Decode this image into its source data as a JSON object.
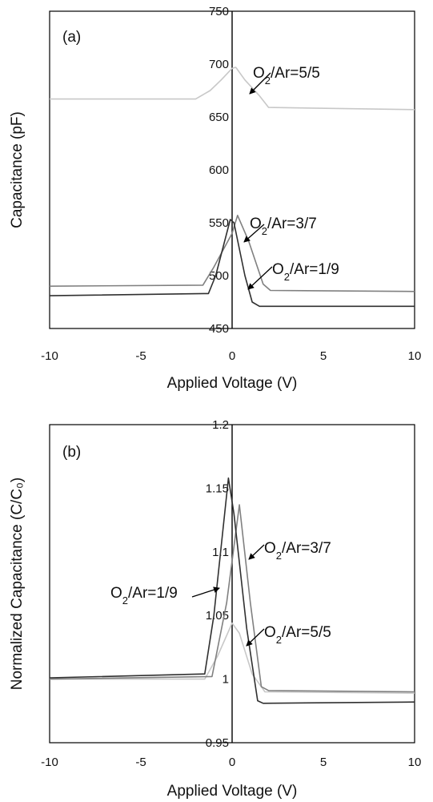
{
  "chart_data": [
    {
      "type": "line",
      "panel_label": "(a)",
      "xlabel": "Applied Voltage (V)",
      "ylabel": "Capacitance (pF)",
      "xlim": [
        -10,
        10
      ],
      "ylim": [
        450,
        750
      ],
      "x_ticks": [
        "-10",
        "-5",
        "0",
        "5",
        "10"
      ],
      "y_ticks": [
        "450",
        "500",
        "550",
        "600",
        "650",
        "700",
        "750"
      ],
      "grid": false,
      "series": [
        {
          "annotation": [
            "O",
            "2",
            "/Ar=5/5"
          ],
          "color": "#c8c8c8",
          "points": [
            [
              -10,
              667
            ],
            [
              -2,
              667
            ],
            [
              -1.2,
              675
            ],
            [
              -0.6,
              685
            ],
            [
              0,
              696
            ],
            [
              0.2,
              697
            ],
            [
              0.7,
              685
            ],
            [
              1.5,
              670
            ],
            [
              2,
              659
            ],
            [
              10,
              657
            ]
          ]
        },
        {
          "annotation": [
            "O",
            "2",
            "/Ar=3/7"
          ],
          "color": "#808080",
          "points": [
            [
              -10,
              490
            ],
            [
              -1.6,
              491
            ],
            [
              -1,
              508
            ],
            [
              0,
              540
            ],
            [
              0.3,
              557
            ],
            [
              0.9,
              533
            ],
            [
              1.7,
              492
            ],
            [
              2.1,
              486
            ],
            [
              10,
              485
            ]
          ]
        },
        {
          "annotation": [
            "O",
            "2",
            "/Ar=1/9"
          ],
          "color": "#303030",
          "points": [
            [
              -10,
              481
            ],
            [
              -1.3,
              483
            ],
            [
              -0.9,
              500
            ],
            [
              -0.1,
              553
            ],
            [
              0.1,
              550
            ],
            [
              0.7,
              500
            ],
            [
              1.1,
              475
            ],
            [
              1.5,
              471
            ],
            [
              10,
              471
            ]
          ]
        }
      ]
    },
    {
      "type": "line",
      "panel_label": "(b)",
      "xlabel": "Applied Voltage (V)",
      "ylabel": "Normalized Capacitance (C/C₀)",
      "xlim": [
        -10,
        10
      ],
      "ylim": [
        0.95,
        1.2
      ],
      "x_ticks": [
        "-10",
        "-5",
        "0",
        "5",
        "10"
      ],
      "y_ticks": [
        "0.95",
        "1",
        "1.05",
        "1.1",
        "1.15",
        "1.2"
      ],
      "grid": false,
      "series": [
        {
          "annotation": [
            "O",
            "2",
            "/Ar=5/5"
          ],
          "color": "#c8c8c8",
          "points": [
            [
              -10,
              1.0
            ],
            [
              -1.5,
              1.0
            ],
            [
              -0.8,
              1.018
            ],
            [
              0,
              1.044
            ],
            [
              0.4,
              1.036
            ],
            [
              1.1,
              1.004
            ],
            [
              1.8,
              0.99
            ],
            [
              10,
              0.989
            ]
          ]
        },
        {
          "annotation": [
            "O",
            "2",
            "/Ar=3/7"
          ],
          "color": "#808080",
          "points": [
            [
              -10,
              1.0
            ],
            [
              -1.1,
              1.002
            ],
            [
              -0.3,
              1.06
            ],
            [
              0.4,
              1.137
            ],
            [
              1.0,
              1.06
            ],
            [
              1.6,
              0.994
            ],
            [
              2.0,
              0.991
            ],
            [
              10,
              0.99
            ]
          ]
        },
        {
          "annotation": [
            "O",
            "2",
            "/Ar=1/9"
          ],
          "color": "#303030",
          "points": [
            [
              -10,
              1.001
            ],
            [
              -1.5,
              1.004
            ],
            [
              -1.0,
              1.05
            ],
            [
              -0.2,
              1.158
            ],
            [
              0.1,
              1.13
            ],
            [
              0.8,
              1.04
            ],
            [
              1.4,
              0.983
            ],
            [
              1.7,
              0.981
            ],
            [
              10,
              0.982
            ]
          ]
        }
      ]
    }
  ]
}
